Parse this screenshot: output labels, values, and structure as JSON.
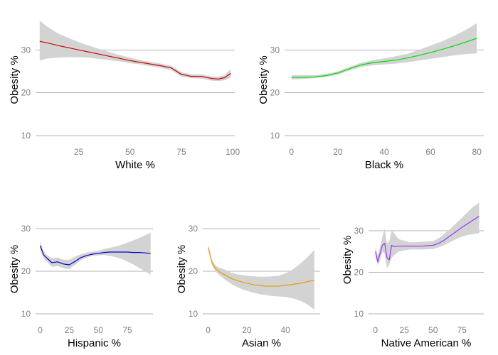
{
  "colors": {
    "ribbon": "#d3d3d3",
    "grid": "#b3b3b3",
    "tick_text": "#7f7f7f"
  },
  "chart_data": [
    {
      "type": "line",
      "xlabel": "White %",
      "ylabel": "Obesity %",
      "xlim": [
        4,
        101
      ],
      "ylim": [
        9,
        37
      ],
      "xticks": [
        25,
        50,
        75,
        100
      ],
      "yticks": [
        10,
        20,
        30
      ],
      "grid": true,
      "series": [
        {
          "color": "#cc0000",
          "x": [
            6,
            10,
            15,
            20,
            25,
            30,
            35,
            40,
            45,
            50,
            55,
            60,
            65,
            70,
            75,
            80,
            85,
            90,
            93,
            96,
            99
          ],
          "values": [
            32.0,
            31.6,
            31.0,
            30.5,
            30.0,
            29.5,
            29.0,
            28.5,
            28.0,
            27.5,
            27.1,
            26.7,
            26.3,
            25.8,
            24.3,
            23.8,
            23.8,
            23.3,
            23.2,
            23.5,
            24.5
          ],
          "lower": [
            27.5,
            28.0,
            28.2,
            28.3,
            28.3,
            28.2,
            27.9,
            27.6,
            27.3,
            26.9,
            26.6,
            26.2,
            25.8,
            25.3,
            23.8,
            23.4,
            23.3,
            22.8,
            22.7,
            22.9,
            23.5
          ],
          "upper": [
            36.8,
            35.3,
            33.8,
            32.8,
            31.8,
            31.0,
            30.2,
            29.5,
            28.8,
            28.2,
            27.6,
            27.2,
            26.8,
            26.3,
            24.8,
            24.3,
            24.3,
            23.8,
            23.8,
            24.1,
            25.5
          ]
        }
      ]
    },
    {
      "type": "line",
      "xlabel": "Black %",
      "ylabel": "Obesity %",
      "xlim": [
        -3,
        83
      ],
      "ylim": [
        9,
        37
      ],
      "xticks": [
        0,
        20,
        40,
        60,
        80
      ],
      "yticks": [
        10,
        20,
        30
      ],
      "grid": true,
      "series": [
        {
          "color": "#00dd00",
          "x": [
            0,
            5,
            10,
            15,
            20,
            25,
            30,
            35,
            40,
            45,
            50,
            55,
            60,
            65,
            70,
            75,
            80
          ],
          "values": [
            23.6,
            23.6,
            23.7,
            24.0,
            24.6,
            25.6,
            26.5,
            27.0,
            27.3,
            27.6,
            28.1,
            28.7,
            29.4,
            30.1,
            30.9,
            31.8,
            32.7
          ],
          "lower": [
            23.1,
            23.2,
            23.4,
            23.7,
            24.2,
            25.2,
            26.0,
            26.4,
            26.6,
            26.8,
            27.1,
            27.5,
            27.9,
            28.3,
            28.7,
            29.0,
            29.2
          ],
          "upper": [
            24.1,
            24.1,
            24.1,
            24.4,
            25.0,
            26.0,
            27.0,
            27.6,
            28.0,
            28.5,
            29.1,
            30.0,
            31.0,
            32.0,
            33.2,
            34.6,
            36.2
          ]
        }
      ]
    },
    {
      "type": "line",
      "xlabel": "Hispanic %",
      "ylabel": "Obesity %",
      "xlim": [
        -4,
        97
      ],
      "ylim": [
        9,
        32
      ],
      "xticks": [
        0,
        25,
        50,
        75
      ],
      "yticks": [
        10,
        20,
        30
      ],
      "grid": true,
      "series": [
        {
          "color": "#0000cc",
          "x": [
            0,
            3,
            6,
            10,
            15,
            20,
            25,
            30,
            35,
            40,
            45,
            50,
            55,
            60,
            65,
            70,
            75,
            80,
            85,
            90,
            95
          ],
          "values": [
            26.0,
            23.8,
            23.0,
            22.0,
            22.2,
            21.7,
            21.5,
            22.3,
            23.2,
            23.7,
            24.0,
            24.2,
            24.4,
            24.5,
            24.5,
            24.5,
            24.5,
            24.4,
            24.4,
            24.3,
            24.2
          ],
          "lower": [
            25.0,
            23.0,
            22.2,
            21.0,
            21.2,
            20.7,
            20.5,
            21.5,
            22.6,
            23.2,
            23.6,
            23.7,
            23.8,
            23.6,
            23.3,
            22.9,
            22.3,
            21.6,
            20.8,
            20.0,
            19.2
          ],
          "upper": [
            27.0,
            24.6,
            23.8,
            23.0,
            23.2,
            22.7,
            22.7,
            23.4,
            24.0,
            24.4,
            24.6,
            24.8,
            25.2,
            25.5,
            25.8,
            26.2,
            26.7,
            27.2,
            27.8,
            28.4,
            29.0
          ]
        }
      ]
    },
    {
      "type": "line",
      "xlabel": "Asian %",
      "ylabel": "Obesity %",
      "xlim": [
        -2.8,
        58
      ],
      "ylim": [
        9,
        32
      ],
      "xticks": [
        0,
        20,
        40
      ],
      "yticks": [
        10,
        20,
        30
      ],
      "grid": true,
      "series": [
        {
          "color": "#e69f00",
          "x": [
            0,
            2,
            4,
            6,
            8,
            10,
            12,
            15,
            18,
            21,
            24,
            27,
            30,
            33,
            36,
            39,
            42,
            45,
            48,
            51,
            55
          ],
          "values": [
            25.6,
            22.0,
            20.5,
            19.8,
            19.3,
            18.8,
            18.3,
            17.8,
            17.4,
            17.1,
            16.8,
            16.6,
            16.5,
            16.5,
            16.5,
            16.6,
            16.8,
            17.0,
            17.2,
            17.5,
            17.9
          ],
          "lower": [
            25.0,
            21.4,
            19.9,
            19.0,
            18.3,
            17.6,
            17.0,
            16.3,
            15.7,
            15.3,
            14.9,
            14.6,
            14.4,
            14.2,
            14.1,
            14.0,
            13.8,
            13.5,
            13.0,
            12.3,
            11.0
          ],
          "upper": [
            26.2,
            22.6,
            21.2,
            20.8,
            20.5,
            20.1,
            19.6,
            19.3,
            19.1,
            18.9,
            18.8,
            18.7,
            18.7,
            18.8,
            18.9,
            19.3,
            19.9,
            20.8,
            21.9,
            23.1,
            25.0
          ]
        }
      ]
    },
    {
      "type": "line",
      "xlabel": "Native American %",
      "ylabel": "Obesity %",
      "xlim": [
        -6,
        94
      ],
      "ylim": [
        9,
        37
      ],
      "xticks": [
        0,
        25,
        50,
        75
      ],
      "yticks": [
        10,
        20,
        30
      ],
      "grid": true,
      "series": [
        {
          "color": "#9933ff",
          "x": [
            0,
            2,
            4,
            6,
            8,
            10,
            12,
            14,
            16,
            20,
            30,
            40,
            50,
            55,
            60,
            65,
            70,
            75,
            80,
            85,
            90
          ],
          "values": [
            25.0,
            22.5,
            24.5,
            26.5,
            27.0,
            23.5,
            23.0,
            26.5,
            26.2,
            26.3,
            26.3,
            26.3,
            26.5,
            27.0,
            27.8,
            28.8,
            29.8,
            30.8,
            31.7,
            32.6,
            33.5
          ],
          "lower": [
            23.8,
            21.7,
            23.0,
            25.0,
            24.5,
            21.0,
            21.8,
            23.5,
            24.0,
            25.0,
            25.5,
            25.5,
            25.6,
            26.0,
            26.6,
            27.3,
            28.0,
            28.6,
            29.0,
            29.2,
            29.4
          ],
          "upper": [
            26.2,
            24.0,
            26.0,
            28.5,
            30.5,
            27.0,
            27.5,
            30.0,
            29.5,
            28.0,
            27.2,
            27.3,
            27.5,
            28.2,
            29.3,
            30.5,
            31.8,
            33.1,
            34.5,
            35.8,
            36.8
          ]
        }
      ]
    }
  ]
}
